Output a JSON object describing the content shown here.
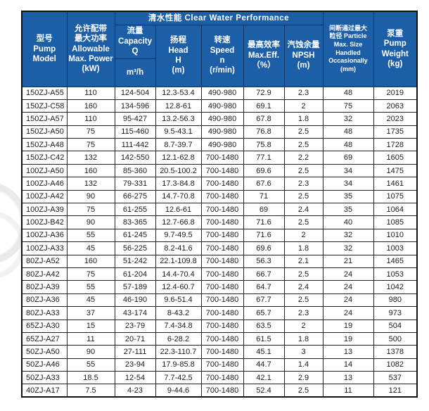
{
  "table": {
    "title_band": "清水性能  Clear Water Performance",
    "header": {
      "model": "型号\nPump\nModel",
      "power": "允许配带\n最大功率\nAllowable\nMax. Power\n(kW)",
      "capacity": "流量\nCapacity\nQ",
      "capacity_unit": "m³/h",
      "head": "扬程\nHead\nH\n(m)",
      "speed": "转速\nSpeed\nn\n(r/min)",
      "max_eff": "最高效率\nMax.Eff.\n（%）",
      "npsh": "汽蚀余量\nNPSH\n(m)",
      "particle": "间断通过最大\n粒径 Particle\nMax. Size\nHandled\nOccasionally\n(mm)",
      "weight": "泵重\nPump\nWeight\n(kg)"
    },
    "columns": [
      "Pump Model",
      "Allowable Max. Power (kW)",
      "Capacity Q m³/h",
      "Head H (m)",
      "Speed n (r/min)",
      "Max.Eff. (%)",
      "NPSH (m)",
      "Particle Max. Size Handled Occasionally (mm)",
      "Pump Weight (kg)"
    ],
    "rows": [
      [
        "150ZJ-A55",
        "110",
        "124-504",
        "12.3-53.4",
        "490-980",
        "72.9",
        "2.3",
        "48",
        "2019"
      ],
      [
        "150ZJ-C58",
        "160",
        "134-596",
        "12.8-61",
        "490-980",
        "69.1",
        "2",
        "75",
        "2063"
      ],
      [
        "150ZJ-A57",
        "110",
        "95-427",
        "13.2-56.3",
        "490-980",
        "67.8",
        "1.8",
        "32",
        "2023"
      ],
      [
        "150ZJ-A50",
        "75",
        "115-460",
        "9.5-43.1",
        "490-980",
        "76.8",
        "2.5",
        "48",
        "1735"
      ],
      [
        "150ZJ-A48",
        "75",
        "111-442",
        "8.7-39.7",
        "490-980",
        "75.8",
        "2.5",
        "48",
        "1728"
      ],
      [
        "150ZJ-C42",
        "132",
        "142-550",
        "12.1-62.8",
        "700-1480",
        "77.1",
        "2.2",
        "69",
        "1605"
      ],
      [
        "100ZJ-A50",
        "160",
        "85-360",
        "20.5-100.2",
        "700-1480",
        "69.6",
        "2.5",
        "34",
        "1475"
      ],
      [
        "100ZJ-A46",
        "132",
        "79-331",
        "17.3-84.8",
        "700-1480",
        "67.6",
        "2.3",
        "34",
        "1461"
      ],
      [
        "100ZJ-A42",
        "90",
        "66-275",
        "14.7-70.8",
        "700-1480",
        "71",
        "2.5",
        "35",
        "1075"
      ],
      [
        "100ZJ-A39",
        "75",
        "61-255",
        "12.6-61",
        "700-1480",
        "69",
        "2.4",
        "35",
        "1064"
      ],
      [
        "100ZJ-B42",
        "90",
        "83-365",
        "12.7-66.8",
        "700-1480",
        "71.6",
        "2.5",
        "40",
        "1085"
      ],
      [
        "100ZJ-A36",
        "55",
        "61-245",
        "9.7-49.5",
        "700-1480",
        "71.6",
        "2",
        "32",
        "1010"
      ],
      [
        "100ZJ-A33",
        "45",
        "56-225",
        "8.2-41.6",
        "700-1480",
        "69.6",
        "1.8",
        "32",
        "1003"
      ],
      [
        "80ZJ-A52",
        "160",
        "51-242",
        "22.1-109.8",
        "700-1480",
        "56.3",
        "2.1",
        "21",
        "1465"
      ],
      [
        "80ZJ-A42",
        "75",
        "61-204",
        "14.4-70.4",
        "700-1480",
        "66.7",
        "2.5",
        "24",
        "1053"
      ],
      [
        "80ZJ-A39",
        "55",
        "57-189",
        "12.4-60.7",
        "700-1480",
        "64.7",
        "2.4",
        "24",
        "1042"
      ],
      [
        "80ZJ-A36",
        "45",
        "46-190",
        "9.6-51.4",
        "700-1480",
        "67.7",
        "2.5",
        "24",
        "980"
      ],
      [
        "80ZJ-A33",
        "37",
        "43-174",
        "8-43.2",
        "700-1480",
        "65.7",
        "2.3",
        "24",
        "973"
      ],
      [
        "65ZJ-A30",
        "15",
        "23-79",
        "7.4-34.8",
        "700-1480",
        "63.5",
        "2",
        "19",
        "504"
      ],
      [
        "65ZJ-A27",
        "11",
        "20-71",
        "6-28.2",
        "700-1480",
        "61.5",
        "1.8",
        "19",
        "500"
      ],
      [
        "50ZJ-A50",
        "90",
        "27-111",
        "22.3-110.7",
        "700-1480",
        "45.1",
        "3",
        "13",
        "1378"
      ],
      [
        "50ZJ-A46",
        "55",
        "23-94",
        "17.9-85.8",
        "700-1480",
        "44.7",
        "1.4",
        "14",
        "1082"
      ],
      [
        "50ZJ-A33",
        "18.5",
        "12-54",
        "7.7-42.5",
        "700-1480",
        "42.1",
        "2.9",
        "13",
        "537"
      ],
      [
        "40ZJ-A17",
        "7.5",
        "4-23",
        "9-44.6",
        "700-1480",
        "52.4",
        "2.5",
        "11",
        "121"
      ]
    ],
    "colors": {
      "header_bg": "#1d5fa7",
      "header_divider": "#0b3263",
      "header_text": "#ffffff",
      "grid_border": "#222222",
      "cell_text": "#1a1a1a"
    }
  }
}
